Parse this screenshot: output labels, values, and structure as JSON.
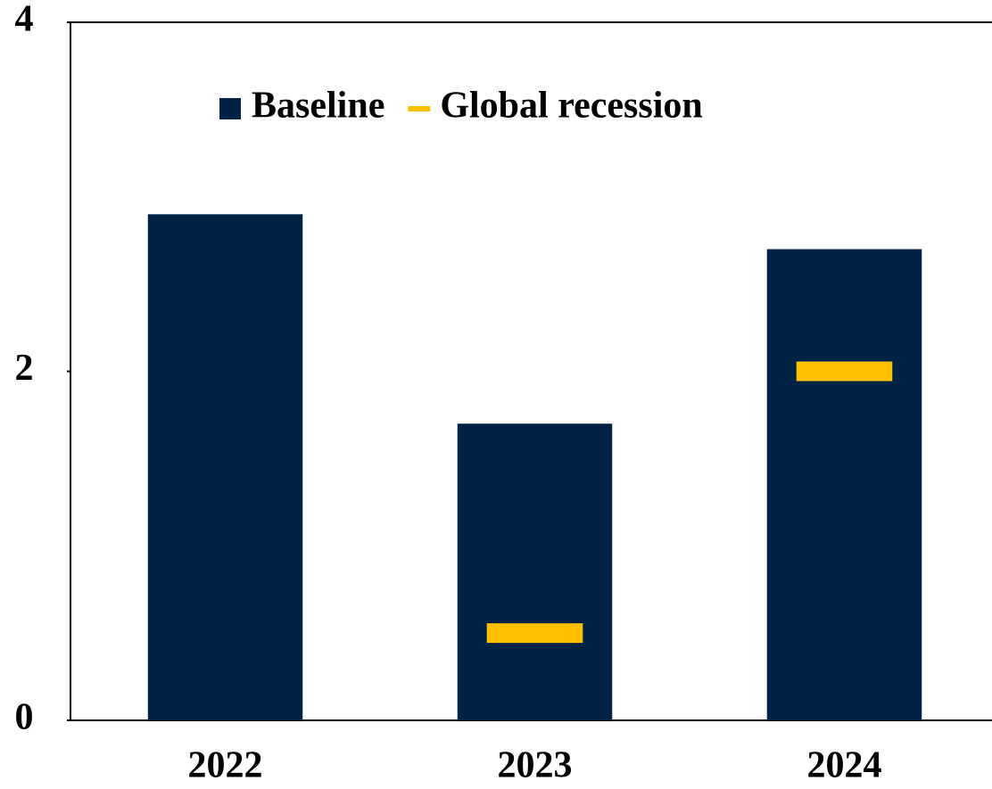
{
  "chart_data": {
    "type": "bar",
    "categories": [
      "2022",
      "2023",
      "2024"
    ],
    "series": [
      {
        "name": "Baseline",
        "color": "#002345",
        "style": "bar",
        "values": [
          2.9,
          1.7,
          2.7
        ]
      },
      {
        "name": "Global recession",
        "color": "#ffc000",
        "style": "marker",
        "values": [
          null,
          0.5,
          2.0
        ]
      }
    ],
    "ylim": [
      0,
      4
    ],
    "yticks": [
      0,
      2,
      4
    ],
    "grid": false
  }
}
